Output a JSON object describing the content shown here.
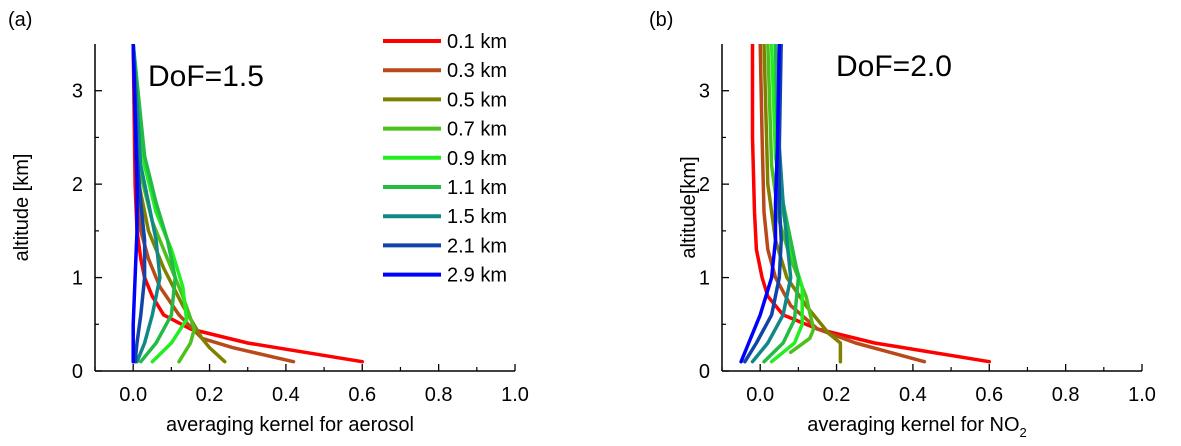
{
  "chart_data": [
    {
      "panel_label": "(a)",
      "type": "line",
      "xlabel": "averaging kernel for aerosol",
      "ylabel": "altitude [km]",
      "annotation": "DoF=1.5",
      "xlim": [
        -0.1,
        1.0
      ],
      "ylim": [
        0,
        3.5
      ],
      "xticks": [
        "0.0",
        "0.2",
        "0.4",
        "0.6",
        "0.8",
        "1.0"
      ],
      "xtick_values": [
        0.0,
        0.2,
        0.4,
        0.6,
        0.8,
        1.0
      ],
      "yticks": [
        "0",
        "1",
        "2",
        "3"
      ],
      "ytick_values": [
        0,
        1,
        2,
        3
      ],
      "legend_placement": "top-right",
      "series": [
        {
          "name": "0.1 km",
          "color": "#ff0000",
          "x": [
            0.6,
            0.3,
            0.15,
            0.08,
            0.05,
            0.03,
            0.02,
            0.01,
            0.005,
            0.0
          ],
          "y": [
            0.1,
            0.3,
            0.45,
            0.6,
            0.8,
            1.0,
            1.2,
            1.5,
            2.0,
            3.5
          ]
        },
        {
          "name": "0.3 km",
          "color": "#b84a1a",
          "x": [
            0.42,
            0.26,
            0.18,
            0.12,
            0.07,
            0.04,
            0.02,
            0.01,
            0.0
          ],
          "y": [
            0.1,
            0.25,
            0.35,
            0.6,
            0.9,
            1.2,
            1.5,
            2.0,
            3.5
          ]
        },
        {
          "name": "0.5 km",
          "color": "#808000",
          "x": [
            0.24,
            0.2,
            0.18,
            0.13,
            0.08,
            0.04,
            0.015,
            0.0
          ],
          "y": [
            0.1,
            0.25,
            0.35,
            0.7,
            1.1,
            1.5,
            2.0,
            3.5
          ]
        },
        {
          "name": "0.7 km",
          "color": "#4cc01c",
          "x": [
            0.12,
            0.15,
            0.16,
            0.13,
            0.09,
            0.05,
            0.02,
            0.0
          ],
          "y": [
            0.1,
            0.3,
            0.45,
            0.8,
            1.2,
            1.6,
            2.1,
            3.5
          ]
        },
        {
          "name": "0.9 km",
          "color": "#22ee22",
          "x": [
            0.05,
            0.1,
            0.14,
            0.13,
            0.1,
            0.06,
            0.03,
            0.0
          ],
          "y": [
            0.1,
            0.3,
            0.55,
            0.9,
            1.3,
            1.7,
            2.2,
            3.5
          ]
        },
        {
          "name": "1.1 km",
          "color": "#22bb44",
          "x": [
            0.02,
            0.06,
            0.1,
            0.11,
            0.09,
            0.06,
            0.03,
            0.0
          ],
          "y": [
            0.1,
            0.3,
            0.6,
            1.0,
            1.4,
            1.8,
            2.3,
            3.5
          ]
        },
        {
          "name": "1.5 km",
          "color": "#118888",
          "x": [
            0.01,
            0.03,
            0.05,
            0.07,
            0.06,
            0.04,
            0.02,
            0.0
          ],
          "y": [
            0.1,
            0.3,
            0.6,
            1.0,
            1.4,
            1.8,
            2.2,
            3.5
          ]
        },
        {
          "name": "2.1 km",
          "color": "#1144aa",
          "x": [
            0.005,
            0.01,
            0.02,
            0.03,
            0.03,
            0.02,
            0.01,
            0.0
          ],
          "y": [
            0.1,
            0.3,
            0.6,
            1.0,
            1.4,
            1.8,
            2.3,
            3.5
          ]
        },
        {
          "name": "2.9 km",
          "color": "#0000ff",
          "x": [
            0.0,
            0.0,
            0.005,
            0.01,
            0.01,
            0.0
          ],
          "y": [
            0.1,
            0.5,
            1.0,
            1.5,
            2.0,
            3.5
          ]
        }
      ]
    },
    {
      "panel_label": "(b)",
      "type": "line",
      "xlabel": "averaging kernel for NO",
      "xlabel_subscript": "2",
      "ylabel": "altitude[km]",
      "annotation": "DoF=2.0",
      "xlim": [
        -0.1,
        1.0
      ],
      "ylim": [
        0,
        3.5
      ],
      "xticks": [
        "0.0",
        "0.2",
        "0.4",
        "0.6",
        "0.8",
        "1.0"
      ],
      "xtick_values": [
        0.0,
        0.2,
        0.4,
        0.6,
        0.8,
        1.0
      ],
      "yticks": [
        "0",
        "1",
        "2",
        "3"
      ],
      "ytick_values": [
        0,
        1,
        2,
        3
      ],
      "series": [
        {
          "name": "0.1 km",
          "color": "#ff0000",
          "x": [
            0.6,
            0.3,
            0.15,
            0.06,
            0.02,
            0.005,
            -0.01,
            -0.015,
            -0.02,
            -0.02
          ],
          "y": [
            0.1,
            0.3,
            0.45,
            0.6,
            0.8,
            1.0,
            1.3,
            1.7,
            2.5,
            3.5
          ]
        },
        {
          "name": "0.3 km",
          "color": "#b84a1a",
          "x": [
            0.43,
            0.25,
            0.15,
            0.08,
            0.04,
            0.02,
            0.01,
            0.005,
            0.0
          ],
          "y": [
            0.1,
            0.3,
            0.45,
            0.7,
            1.0,
            1.3,
            1.7,
            2.5,
            3.5
          ]
        },
        {
          "name": "0.5 km",
          "color": "#808000",
          "x": [
            0.21,
            0.21,
            0.18,
            0.12,
            0.07,
            0.04,
            0.02,
            0.01
          ],
          "y": [
            0.1,
            0.3,
            0.4,
            0.7,
            1.0,
            1.4,
            2.0,
            3.5
          ]
        },
        {
          "name": "0.7 km",
          "color": "#4cc01c",
          "x": [
            0.08,
            0.13,
            0.14,
            0.12,
            0.08,
            0.05,
            0.03,
            0.02
          ],
          "y": [
            0.2,
            0.35,
            0.45,
            0.8,
            1.2,
            1.6,
            2.2,
            3.5
          ]
        },
        {
          "name": "0.9 km",
          "color": "#22ee22",
          "x": [
            0.03,
            0.09,
            0.11,
            0.11,
            0.08,
            0.06,
            0.04,
            0.03
          ],
          "y": [
            0.1,
            0.3,
            0.5,
            0.9,
            1.3,
            1.7,
            2.3,
            3.5
          ]
        },
        {
          "name": "1.1 km",
          "color": "#22bb44",
          "x": [
            0.01,
            0.06,
            0.09,
            0.1,
            0.08,
            0.06,
            0.045,
            0.04
          ],
          "y": [
            0.1,
            0.3,
            0.55,
            1.0,
            1.4,
            1.8,
            2.4,
            3.5
          ]
        },
        {
          "name": "1.5 km",
          "color": "#118888",
          "x": [
            -0.02,
            0.02,
            0.06,
            0.08,
            0.07,
            0.06,
            0.05,
            0.05
          ],
          "y": [
            0.1,
            0.3,
            0.6,
            1.0,
            1.4,
            1.8,
            2.4,
            3.5
          ]
        },
        {
          "name": "2.1 km",
          "color": "#1144aa",
          "x": [
            -0.04,
            -0.01,
            0.03,
            0.05,
            0.055,
            0.05,
            0.05,
            0.055
          ],
          "y": [
            0.1,
            0.3,
            0.6,
            1.0,
            1.4,
            1.8,
            2.4,
            3.5
          ]
        },
        {
          "name": "2.9 km",
          "color": "#0000ff",
          "x": [
            -0.05,
            -0.03,
            0.0,
            0.03,
            0.04,
            0.04,
            0.045,
            0.05
          ],
          "y": [
            0.1,
            0.3,
            0.6,
            1.0,
            1.4,
            1.8,
            2.4,
            3.5
          ]
        }
      ]
    }
  ]
}
